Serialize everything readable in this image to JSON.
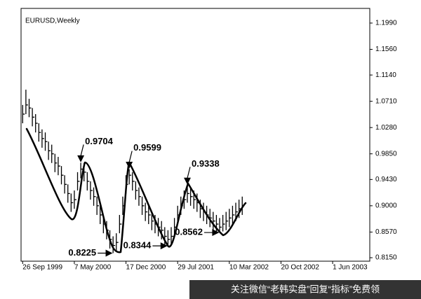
{
  "chart_data": {
    "type": "ohlc",
    "title": "EURUSD,Weekly",
    "color": "#000000",
    "x": [
      0,
      2,
      4,
      6,
      8,
      10,
      12,
      14,
      16,
      18,
      20,
      22,
      24,
      26,
      28,
      30,
      32,
      34,
      36,
      38,
      40,
      42,
      44,
      46,
      48,
      50,
      52,
      54,
      56,
      58,
      60,
      62,
      64,
      66,
      68,
      70,
      72,
      74,
      76,
      78,
      80,
      82,
      84,
      86,
      88,
      90,
      92,
      94,
      96,
      98,
      100,
      102,
      104,
      106,
      108,
      110,
      112,
      114,
      116,
      118,
      120,
      122,
      124,
      126,
      128,
      130,
      132,
      134,
      136
    ],
    "high": [
      1.065,
      1.09,
      1.075,
      1.06,
      1.05,
      1.035,
      1.025,
      1.02,
      1.005,
      1.0,
      0.985,
      0.98,
      0.965,
      0.95,
      0.935,
      0.92,
      0.925,
      0.955,
      0.9704,
      0.97,
      0.955,
      0.94,
      0.93,
      0.915,
      0.9,
      0.885,
      0.875,
      0.86,
      0.85,
      0.855,
      0.885,
      0.915,
      0.95,
      0.9599,
      0.955,
      0.94,
      0.93,
      0.915,
      0.905,
      0.9,
      0.89,
      0.885,
      0.88,
      0.875,
      0.865,
      0.86,
      0.865,
      0.88,
      0.9,
      0.915,
      0.925,
      0.9338,
      0.93,
      0.925,
      0.92,
      0.91,
      0.905,
      0.9,
      0.895,
      0.89,
      0.885,
      0.88,
      0.885,
      0.89,
      0.895,
      0.9,
      0.905,
      0.91,
      0.915
    ],
    "low": [
      1.035,
      1.05,
      1.045,
      1.03,
      1.02,
      1.005,
      0.995,
      0.99,
      0.975,
      0.97,
      0.955,
      0.95,
      0.935,
      0.92,
      0.905,
      0.89,
      0.895,
      0.925,
      0.945,
      0.94,
      0.925,
      0.91,
      0.9,
      0.885,
      0.87,
      0.855,
      0.845,
      0.83,
      0.8225,
      0.825,
      0.855,
      0.885,
      0.92,
      0.935,
      0.925,
      0.91,
      0.9,
      0.885,
      0.875,
      0.87,
      0.86,
      0.855,
      0.85,
      0.845,
      0.835,
      0.8344,
      0.835,
      0.85,
      0.87,
      0.885,
      0.895,
      0.905,
      0.9,
      0.895,
      0.89,
      0.88,
      0.875,
      0.87,
      0.865,
      0.86,
      0.858,
      0.8562,
      0.858,
      0.86,
      0.865,
      0.87,
      0.875,
      0.88,
      0.885
    ],
    "close": [
      1.05,
      1.065,
      1.06,
      1.045,
      1.035,
      1.02,
      1.01,
      1.005,
      0.99,
      0.985,
      0.97,
      0.965,
      0.95,
      0.935,
      0.92,
      0.905,
      0.91,
      0.94,
      0.96,
      0.955,
      0.94,
      0.925,
      0.915,
      0.9,
      0.885,
      0.87,
      0.86,
      0.845,
      0.835,
      0.84,
      0.87,
      0.9,
      0.935,
      0.95,
      0.94,
      0.925,
      0.915,
      0.9,
      0.89,
      0.885,
      0.875,
      0.87,
      0.865,
      0.86,
      0.85,
      0.845,
      0.85,
      0.865,
      0.885,
      0.9,
      0.91,
      0.92,
      0.915,
      0.91,
      0.905,
      0.895,
      0.89,
      0.885,
      0.88,
      0.875,
      0.87,
      0.865,
      0.87,
      0.875,
      0.88,
      0.885,
      0.89,
      0.895,
      0.9
    ],
    "xlim": [
      -1,
      215
    ],
    "ylim": [
      0.8093,
      1.223
    ],
    "xticks": [
      {
        "value": 0,
        "label": "26 Sep 1999"
      },
      {
        "value": 32,
        "label": "7 May 2000"
      },
      {
        "value": 64,
        "label": "17 Dec 2000"
      },
      {
        "value": 96,
        "label": "29 Jul 2001"
      },
      {
        "value": 128,
        "label": "10 Mar 2002"
      },
      {
        "value": 160,
        "label": "20 Oct 2002"
      },
      {
        "value": 192,
        "label": "1 Jun 2003"
      }
    ],
    "yticks": [
      {
        "value": 1.199,
        "label": "1.1990"
      },
      {
        "value": 1.156,
        "label": "1.1560"
      },
      {
        "value": 1.114,
        "label": "1.1140"
      },
      {
        "value": 1.071,
        "label": "1.0710"
      },
      {
        "value": 1.028,
        "label": "1.0280"
      },
      {
        "value": 0.985,
        "label": "0.9850"
      },
      {
        "value": 0.943,
        "label": "0.9430"
      },
      {
        "value": 0.9,
        "label": "0.9000"
      },
      {
        "value": 0.857,
        "label": "0.8570"
      },
      {
        "value": 0.815,
        "label": "0.8150"
      }
    ],
    "annotations": [
      0.9704,
      0.9599,
      0.9338,
      0.8225,
      0.8344,
      0.8562
    ]
  },
  "watermark": "关注微信“老韩实盘”回复“指标”免费领"
}
